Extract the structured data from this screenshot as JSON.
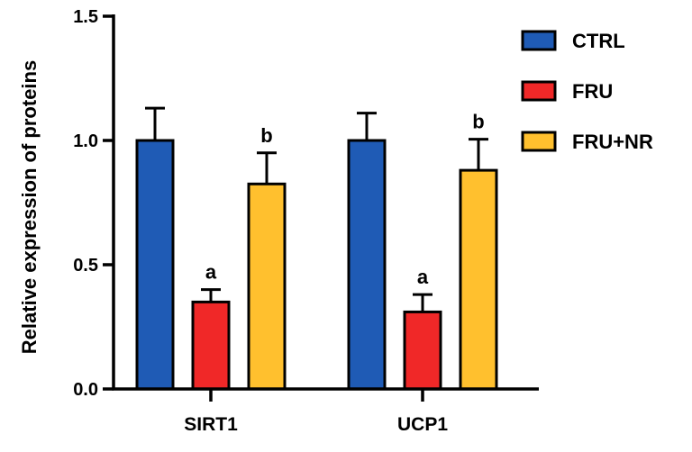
{
  "chart_data": {
    "type": "bar",
    "title": "",
    "xlabel": "",
    "ylabel": "Relative expression of proteins",
    "ylim": [
      0,
      1.5
    ],
    "yticks": [
      "0.0",
      "0.5",
      "1.0",
      "1.5"
    ],
    "ytick_values": [
      0,
      0.5,
      1.0,
      1.5
    ],
    "categories": [
      "SIRT1",
      "UCP1"
    ],
    "legend_position": "top-right",
    "grid": false,
    "series": [
      {
        "name": "CTRL",
        "color": "#1F5BB5",
        "values": [
          1.0,
          1.0
        ],
        "errors": [
          0.13,
          0.11
        ],
        "annotations": [
          "",
          ""
        ]
      },
      {
        "name": "FRU",
        "color": "#F02828",
        "values": [
          0.35,
          0.31
        ],
        "errors": [
          0.05,
          0.07
        ],
        "annotations": [
          "a",
          "a"
        ]
      },
      {
        "name": "FRU+NR",
        "color": "#FFC02E",
        "values": [
          0.825,
          0.88
        ],
        "errors": [
          0.125,
          0.125
        ],
        "annotations": [
          "b",
          "b"
        ]
      }
    ]
  }
}
